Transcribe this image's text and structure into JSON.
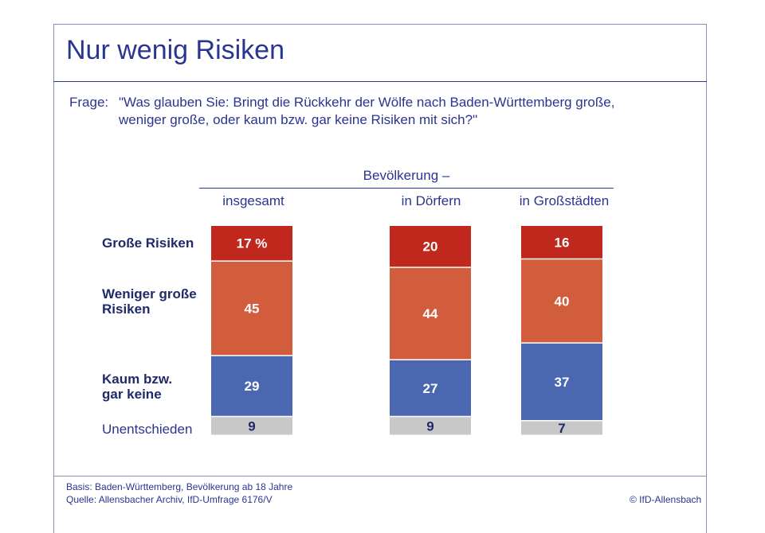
{
  "colors": {
    "grosse": "#c1281d",
    "weniger": "#d25d3c",
    "kaum": "#4a67b0",
    "unentschieden": "#c8c8c8",
    "text": "#1f2a6b"
  },
  "chart_data": {
    "type": "bar",
    "title": "Nur wenig Risiken",
    "question_label": "Frage:",
    "question_line1": "\"Was glauben Sie: Bringt die Rückkehr der Wölfe nach Baden-Württemberg große,",
    "question_line2": "weniger große, oder kaum bzw. gar keine Risiken mit sich?\"",
    "group_label": "Bevölkerung –",
    "categories": [
      "insgesamt",
      "in Dörfern",
      "in Großstädten"
    ],
    "series": [
      {
        "name": "Große Risiken",
        "values": [
          17,
          20,
          16
        ],
        "labels": [
          "17 %",
          "20",
          "16"
        ]
      },
      {
        "name": "Weniger große Risiken",
        "name_line1": "Weniger große",
        "name_line2": "Risiken",
        "values": [
          45,
          44,
          40
        ],
        "labels": [
          "45",
          "44",
          "40"
        ]
      },
      {
        "name": "Kaum bzw. gar keine",
        "name_line1": "Kaum bzw.",
        "name_line2": "gar keine",
        "values": [
          29,
          27,
          37
        ],
        "labels": [
          "29",
          "27",
          "37"
        ]
      },
      {
        "name": "Unentschieden",
        "values": [
          9,
          9,
          7
        ],
        "labels": [
          "9",
          "9",
          "7"
        ]
      }
    ],
    "stacked": true,
    "unit": "%"
  },
  "footer": {
    "basis": "Basis: Baden-Württemberg, Bevölkerung ab 18 Jahre",
    "quelle": "Quelle: Allensbacher Archiv, IfD-Umfrage 6176/V",
    "copyright": "© IfD-Allensbach"
  }
}
